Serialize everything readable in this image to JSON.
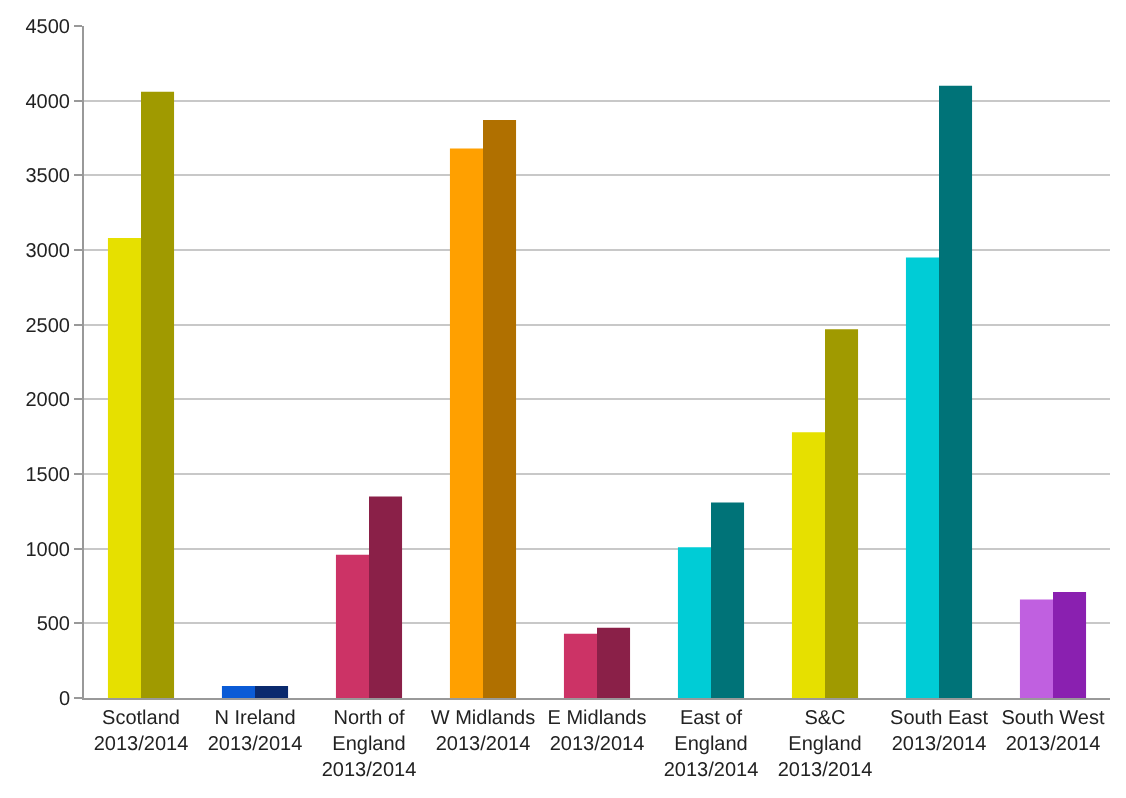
{
  "chart_data": {
    "type": "bar",
    "categories": [
      "Scotland\n2013/2014",
      "N Ireland\n2013/2014",
      "North of\nEngland\n2013/2014",
      "W Midlands\n2013/2014",
      "E Midlands\n2013/2014",
      "East of\nEngland\n2013/2014",
      "S&C\nEngland\n2013/2014",
      "South East\n2013/2014",
      "South West\n2013/2014"
    ],
    "series": [
      {
        "colors": [
          "#e6e000",
          "#0a5bd6",
          "#cc3366",
          "#ffa000",
          "#cc3366",
          "#00ccd6",
          "#e6e000",
          "#00ccd6",
          "#c060e0"
        ],
        "values": [
          3080,
          80,
          960,
          3680,
          430,
          1010,
          1780,
          2950,
          660
        ]
      },
      {
        "colors": [
          "#a09a00",
          "#0a2a6e",
          "#8a2048",
          "#b07000",
          "#8a2048",
          "#007378",
          "#a09a00",
          "#007378",
          "#8a20b0"
        ],
        "values": [
          4060,
          80,
          1350,
          3870,
          470,
          1310,
          2470,
          4100,
          710
        ]
      }
    ],
    "ylim": [
      0,
      4500
    ],
    "yticks": [
      0,
      500,
      1000,
      1500,
      2000,
      2500,
      3000,
      3500,
      4000,
      4500
    ],
    "grid": "y"
  }
}
